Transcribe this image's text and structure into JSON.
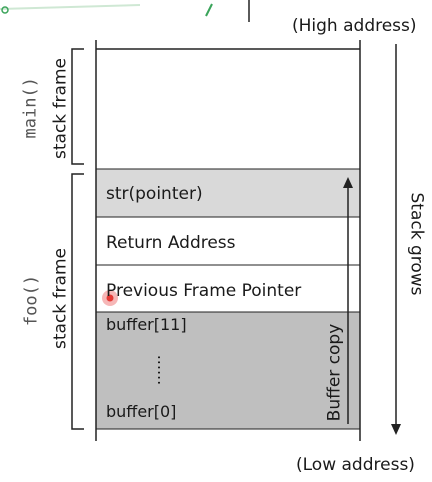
{
  "labels": {
    "high_address": "(High address)",
    "low_address": "(Low address)",
    "stack_grows": "Stack grows",
    "buffer_copy": "Buffer copy"
  },
  "frames": {
    "main": {
      "func": "main()",
      "label": "stack frame"
    },
    "foo": {
      "func": "foo()",
      "label": "stack frame"
    }
  },
  "cells": {
    "str_pointer": "str(pointer)",
    "return_address": "Return Address",
    "previous_frame_pointer": "Previous Frame Pointer",
    "buffer_top": "buffer[11]",
    "buffer_dots": "......",
    "buffer_bottom": "buffer[0]"
  },
  "colors": {
    "gray_light": "#d9d9d9",
    "gray_dark": "#bfbfbf",
    "line": "#222222",
    "cursor_red": "#e53935",
    "stroke_green": "#3aa45a"
  }
}
